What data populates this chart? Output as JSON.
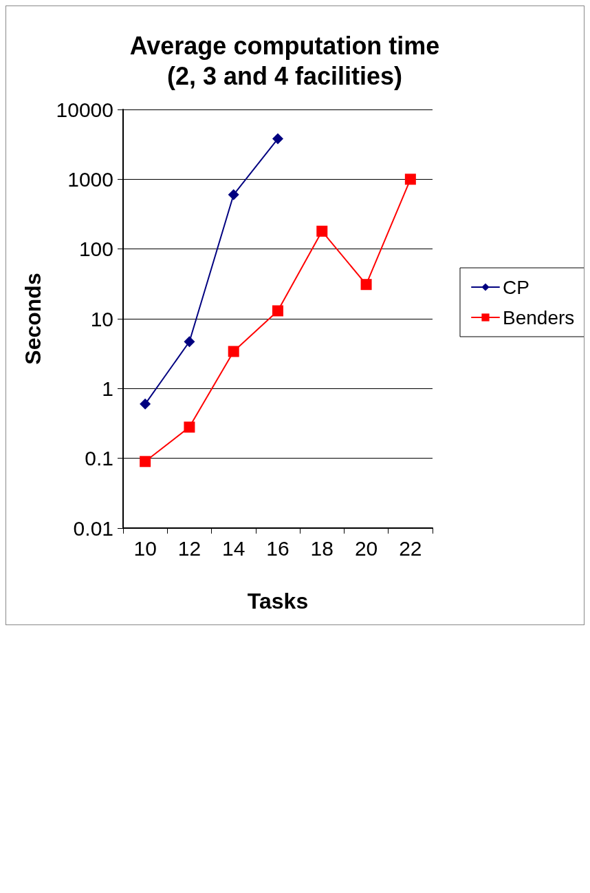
{
  "chart_data": {
    "type": "line",
    "title": "Average computation time\n(2, 3 and 4 facilities)",
    "xlabel": "Tasks",
    "ylabel": "Seconds",
    "categories": [
      "10",
      "12",
      "14",
      "16",
      "18",
      "20",
      "22"
    ],
    "series": [
      {
        "name": "CP",
        "color": "#000080",
        "marker": "diamond",
        "values": [
          0.6,
          4.7,
          600,
          3800,
          null,
          null,
          null
        ]
      },
      {
        "name": "Benders",
        "color": "#ff0000",
        "marker": "square",
        "values": [
          0.09,
          0.28,
          3.4,
          13,
          180,
          31,
          1000
        ]
      }
    ],
    "log": "y",
    "ylim": [
      0.01,
      10000
    ],
    "yticks": [
      0.01,
      0.1,
      1,
      10,
      100,
      1000,
      10000
    ],
    "grid": "y",
    "legend": "right",
    "line_style": "solid"
  }
}
